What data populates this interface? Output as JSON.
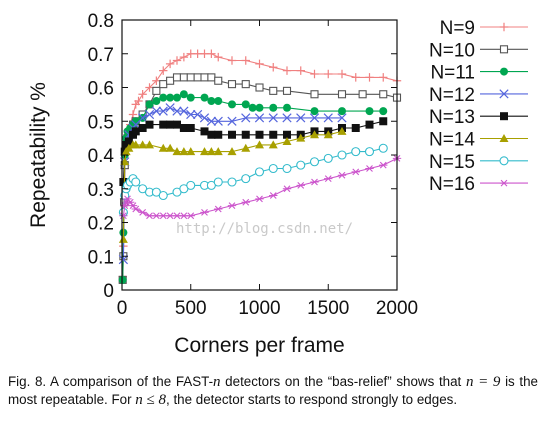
{
  "chart_data": {
    "type": "line",
    "title": "",
    "xlabel": "Corners per frame",
    "ylabel": "Repeatability %",
    "xlim": [
      0,
      2000
    ],
    "ylim": [
      0,
      0.8
    ],
    "xticks": [
      0,
      500,
      1000,
      1500,
      2000
    ],
    "yticks": [
      0,
      0.1,
      0.2,
      0.3,
      0.4,
      0.5,
      0.6,
      0.7,
      0.8
    ],
    "grid": false,
    "legend_position": "right",
    "series": [
      {
        "name": "N=9",
        "color": "#f08080",
        "marker": "plus",
        "x": [
          5,
          10,
          15,
          20,
          30,
          40,
          60,
          80,
          100,
          120,
          150,
          200,
          250,
          300,
          350,
          400,
          450,
          500,
          550,
          600,
          650,
          700,
          800,
          900,
          1000,
          1100,
          1200,
          1300,
          1400,
          1500,
          1600,
          1700,
          1800,
          1900,
          2000
        ],
        "y": [
          0.04,
          0.13,
          0.27,
          0.36,
          0.42,
          0.45,
          0.49,
          0.52,
          0.55,
          0.56,
          0.58,
          0.6,
          0.62,
          0.65,
          0.67,
          0.68,
          0.69,
          0.7,
          0.7,
          0.7,
          0.7,
          0.69,
          0.68,
          0.68,
          0.67,
          0.66,
          0.65,
          0.65,
          0.64,
          0.64,
          0.64,
          0.63,
          0.63,
          0.63,
          0.62
        ]
      },
      {
        "name": "N=10",
        "color": "#555555",
        "marker": "square-open",
        "x": [
          5,
          10,
          15,
          20,
          30,
          40,
          60,
          80,
          100,
          150,
          200,
          250,
          300,
          350,
          400,
          450,
          500,
          550,
          600,
          650,
          700,
          800,
          900,
          1000,
          1100,
          1200,
          1400,
          1600,
          1750,
          1900,
          2000
        ],
        "y": [
          0.03,
          0.1,
          0.26,
          0.37,
          0.43,
          0.45,
          0.47,
          0.49,
          0.5,
          0.52,
          0.55,
          0.59,
          0.61,
          0.62,
          0.63,
          0.63,
          0.63,
          0.63,
          0.63,
          0.63,
          0.62,
          0.61,
          0.61,
          0.6,
          0.59,
          0.59,
          0.58,
          0.58,
          0.58,
          0.58,
          0.57
        ]
      },
      {
        "name": "N=11",
        "color": "#00a651",
        "marker": "circle-filled",
        "x": [
          5,
          10,
          20,
          30,
          40,
          60,
          80,
          100,
          150,
          200,
          250,
          300,
          350,
          400,
          450,
          500,
          600,
          650,
          700,
          800,
          900,
          950,
          1000,
          1100,
          1200,
          1400,
          1600,
          1800,
          1900
        ],
        "y": [
          0.03,
          0.17,
          0.4,
          0.45,
          0.47,
          0.48,
          0.49,
          0.5,
          0.51,
          0.55,
          0.56,
          0.57,
          0.57,
          0.57,
          0.58,
          0.57,
          0.57,
          0.56,
          0.56,
          0.55,
          0.55,
          0.54,
          0.54,
          0.54,
          0.54,
          0.53,
          0.53,
          0.53,
          0.53
        ]
      },
      {
        "name": "N=12",
        "color": "#5566dd",
        "marker": "cross",
        "x": [
          10,
          20,
          30,
          50,
          80,
          100,
          150,
          200,
          250,
          300,
          350,
          400,
          450,
          500,
          550,
          600,
          650,
          700,
          800,
          900,
          1000,
          1100,
          1200,
          1300,
          1400,
          1500,
          1600
        ],
        "y": [
          0.09,
          0.38,
          0.43,
          0.46,
          0.48,
          0.49,
          0.51,
          0.52,
          0.53,
          0.53,
          0.54,
          0.53,
          0.53,
          0.52,
          0.52,
          0.51,
          0.5,
          0.5,
          0.5,
          0.51,
          0.51,
          0.51,
          0.51,
          0.51,
          0.51,
          0.51,
          0.51
        ]
      },
      {
        "name": "N=13",
        "color": "#111111",
        "marker": "square-filled",
        "x": [
          10,
          20,
          30,
          50,
          80,
          100,
          150,
          200,
          300,
          350,
          400,
          450,
          500,
          600,
          650,
          700,
          800,
          900,
          1000,
          1100,
          1200,
          1300,
          1400,
          1500,
          1600,
          1700,
          1800,
          1900
        ],
        "y": [
          0.32,
          0.41,
          0.43,
          0.44,
          0.46,
          0.47,
          0.48,
          0.49,
          0.49,
          0.49,
          0.49,
          0.48,
          0.48,
          0.47,
          0.46,
          0.46,
          0.46,
          0.46,
          0.46,
          0.46,
          0.46,
          0.46,
          0.47,
          0.47,
          0.48,
          0.48,
          0.49,
          0.5
        ]
      },
      {
        "name": "N=14",
        "color": "#a8a000",
        "marker": "triangle-filled",
        "x": [
          10,
          20,
          30,
          50,
          80,
          100,
          150,
          200,
          300,
          350,
          400,
          450,
          500,
          600,
          650,
          700,
          800,
          900,
          1000,
          1100,
          1200,
          1300,
          1400,
          1500,
          1600
        ],
        "y": [
          0.15,
          0.38,
          0.41,
          0.42,
          0.43,
          0.43,
          0.43,
          0.43,
          0.42,
          0.42,
          0.41,
          0.41,
          0.41,
          0.41,
          0.41,
          0.41,
          0.41,
          0.42,
          0.43,
          0.43,
          0.44,
          0.45,
          0.46,
          0.46,
          0.47
        ]
      },
      {
        "name": "N=15",
        "color": "#33bbcc",
        "marker": "circle-open",
        "x": [
          10,
          20,
          30,
          40,
          60,
          80,
          100,
          150,
          200,
          250,
          300,
          400,
          450,
          500,
          600,
          650,
          700,
          800,
          900,
          1000,
          1100,
          1200,
          1300,
          1400,
          1500,
          1600,
          1700,
          1800,
          1900
        ],
        "y": [
          0.23,
          0.28,
          0.3,
          0.31,
          0.32,
          0.33,
          0.32,
          0.3,
          0.29,
          0.29,
          0.28,
          0.29,
          0.3,
          0.31,
          0.31,
          0.31,
          0.32,
          0.32,
          0.33,
          0.35,
          0.36,
          0.36,
          0.37,
          0.38,
          0.39,
          0.4,
          0.41,
          0.41,
          0.42
        ]
      },
      {
        "name": "N=16",
        "color": "#cc55cc",
        "marker": "star",
        "x": [
          10,
          20,
          30,
          40,
          60,
          80,
          100,
          150,
          200,
          250,
          300,
          350,
          400,
          450,
          500,
          600,
          700,
          800,
          900,
          1000,
          1100,
          1200,
          1300,
          1400,
          1500,
          1600,
          1700,
          1800,
          1900,
          2000
        ],
        "y": [
          0.22,
          0.25,
          0.26,
          0.27,
          0.26,
          0.25,
          0.24,
          0.23,
          0.22,
          0.22,
          0.22,
          0.22,
          0.22,
          0.22,
          0.22,
          0.23,
          0.24,
          0.25,
          0.26,
          0.27,
          0.28,
          0.3,
          0.31,
          0.32,
          0.33,
          0.34,
          0.35,
          0.36,
          0.37,
          0.39
        ]
      }
    ]
  },
  "watermark": "http://blog.csdn.net/",
  "caption": {
    "p1": "Fig. 8. A comparison of the FAST-",
    "m1": "n",
    "p2": " detectors on the “bas-relief” shows that ",
    "m2": "n = 9",
    "p3": " is the most repeatable. For ",
    "m3": "n ≤ 8",
    "p4": ", the detector starts to respond strongly to edges."
  }
}
